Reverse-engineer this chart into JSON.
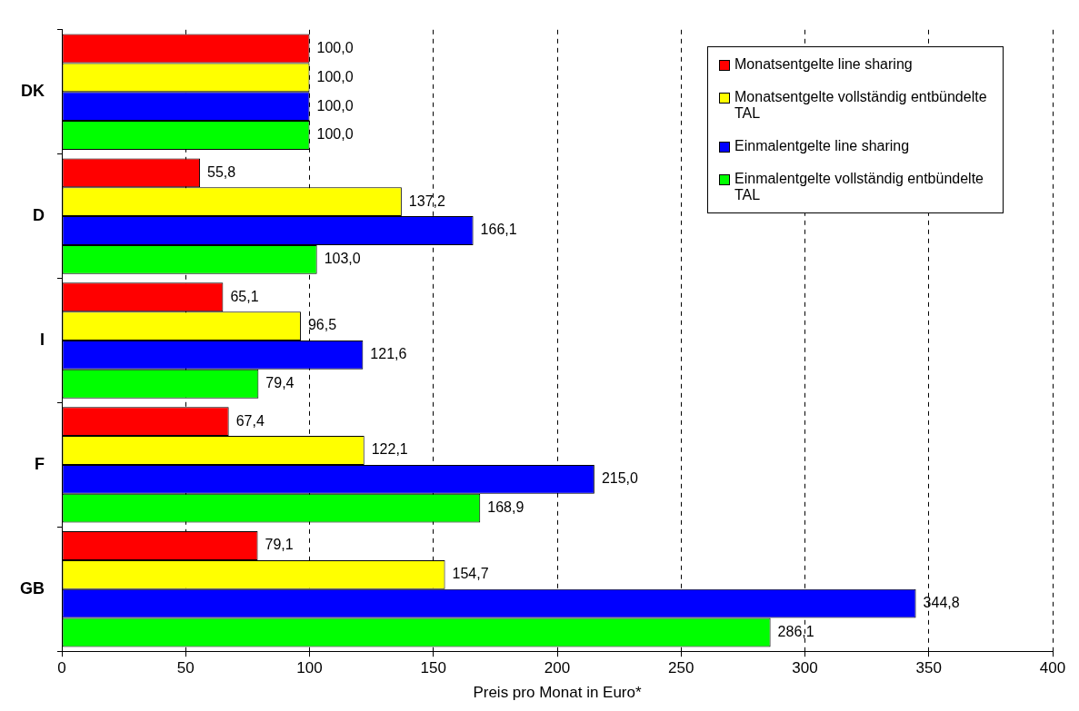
{
  "chart_data": {
    "type": "bar",
    "orientation": "horizontal",
    "categories": [
      "DK",
      "D",
      "I",
      "F",
      "GB"
    ],
    "xlabel": "Preis pro Monat in Euro*",
    "xlim": [
      0,
      400
    ],
    "xticks": [
      0,
      50,
      100,
      150,
      200,
      250,
      300,
      350,
      400
    ],
    "grid": "x",
    "legend": "top right",
    "series": [
      {
        "name": "Monatsentgelte line sharing",
        "color": "#ff0000",
        "values": [
          100.0,
          55.8,
          65.1,
          67.4,
          79.1
        ],
        "value_labels": [
          "100,0",
          "55,8",
          "65,1",
          "67,4",
          "79,1"
        ]
      },
      {
        "name": "Monatsentgelte vollständig entbündelte TAL",
        "color": "#ffff00",
        "values": [
          100.0,
          137.2,
          96.5,
          122.1,
          154.7
        ],
        "value_labels": [
          "100,0",
          "137,2",
          "96,5",
          "122,1",
          "154,7"
        ]
      },
      {
        "name": "Einmalentgelte line sharing",
        "color": "#0000ff",
        "values": [
          100.0,
          166.1,
          121.6,
          215.0,
          344.8
        ],
        "value_labels": [
          "100,0",
          "166,1",
          "121,6",
          "215,0",
          "344,8"
        ]
      },
      {
        "name": "Einmalentgelte vollständig entbündelte TAL",
        "color": "#00ff00",
        "values": [
          100.0,
          103.0,
          79.4,
          168.9,
          286.1
        ],
        "value_labels": [
          "100,0",
          "103,0",
          "79,4",
          "168,9",
          "286,1"
        ]
      }
    ]
  }
}
